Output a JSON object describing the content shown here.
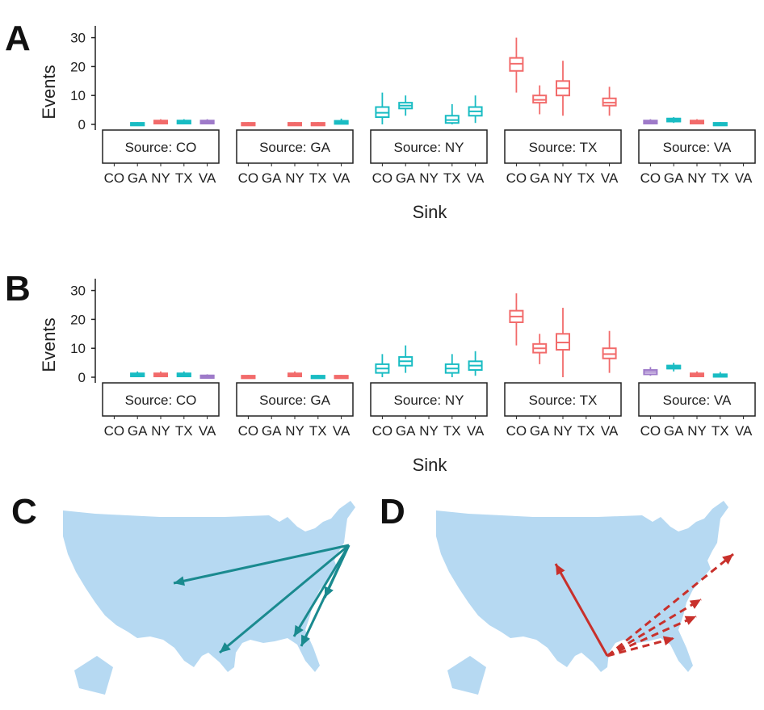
{
  "panels": {
    "A": {
      "letter": "A"
    },
    "B": {
      "letter": "B"
    },
    "C": {
      "letter": "C"
    },
    "D": {
      "letter": "D"
    }
  },
  "colors": {
    "CO": "#9e7ac9",
    "GA": "#00b7bf",
    "NY": "#f26b6b",
    "TX": "#00b7bf",
    "VA": "#9e7ac9",
    "red": "#f26b6b",
    "teal": "#19bcc3",
    "map": "#b6d9f2",
    "arrow_teal": "#1a8a8f",
    "arrow_red": "#c8302b"
  },
  "chart_data": [
    {
      "type": "box",
      "panel": "A",
      "ylabel": "Events",
      "xlabel": "Sink",
      "y_ticks": [
        "0",
        "10",
        "20",
        "30"
      ],
      "ylim": [
        -1,
        37
      ],
      "facet_prefix": "Source: ",
      "sinks": [
        "CO",
        "GA",
        "NY",
        "TX",
        "VA"
      ],
      "facets": [
        {
          "source": "CO",
          "boxes": [
            null,
            {
              "sink": "GA",
              "min": 0,
              "q1": 0,
              "median": 0.2,
              "q3": 0.5,
              "max": 0.8,
              "color": "teal"
            },
            {
              "sink": "NY",
              "min": 0,
              "q1": 0.3,
              "median": 0.8,
              "q3": 1.3,
              "max": 1.8,
              "color": "red"
            },
            {
              "sink": "TX",
              "min": 0,
              "q1": 0.3,
              "median": 0.8,
              "q3": 1.3,
              "max": 1.8,
              "color": "teal"
            },
            {
              "sink": "VA",
              "min": 0,
              "q1": 0.3,
              "median": 0.8,
              "q3": 1.3,
              "max": 1.8,
              "color": "purple"
            }
          ]
        },
        {
          "source": "GA",
          "boxes": [
            {
              "sink": "CO",
              "min": 0,
              "q1": 0,
              "median": 0.2,
              "q3": 0.5,
              "max": 0.8,
              "color": "red"
            },
            null,
            {
              "sink": "NY",
              "min": 0,
              "q1": 0,
              "median": 0.2,
              "q3": 0.5,
              "max": 0.8,
              "color": "red"
            },
            {
              "sink": "TX",
              "min": 0,
              "q1": 0,
              "median": 0.2,
              "q3": 0.5,
              "max": 0.8,
              "color": "red"
            },
            {
              "sink": "VA",
              "min": 0,
              "q1": 0.2,
              "median": 0.7,
              "q3": 1.2,
              "max": 2.0,
              "color": "teal"
            }
          ]
        },
        {
          "source": "NY",
          "boxes": [
            {
              "sink": "CO",
              "min": 0,
              "q1": 2.5,
              "median": 4,
              "q3": 6,
              "max": 11,
              "color": "teal"
            },
            {
              "sink": "GA",
              "min": 3,
              "q1": 5.5,
              "median": 6.5,
              "q3": 7.5,
              "max": 10,
              "color": "teal"
            },
            null,
            {
              "sink": "TX",
              "min": 0,
              "q1": 0.5,
              "median": 1.5,
              "q3": 3,
              "max": 7,
              "color": "teal"
            },
            {
              "sink": "VA",
              "min": 0.5,
              "q1": 3,
              "median": 4.5,
              "q3": 6,
              "max": 10,
              "color": "teal"
            }
          ]
        },
        {
          "source": "TX",
          "boxes": [
            {
              "sink": "CO",
              "min": 11,
              "q1": 18.5,
              "median": 21,
              "q3": 23,
              "max": 30,
              "color": "red"
            },
            {
              "sink": "GA",
              "min": 3.5,
              "q1": 7.5,
              "median": 8.5,
              "q3": 10,
              "max": 13.5,
              "color": "red"
            },
            {
              "sink": "NY",
              "min": 3,
              "q1": 10,
              "median": 12.5,
              "q3": 15,
              "max": 22,
              "color": "red"
            },
            null,
            {
              "sink": "VA",
              "min": 3,
              "q1": 6.5,
              "median": 7.5,
              "q3": 9,
              "max": 13,
              "color": "red"
            }
          ]
        },
        {
          "source": "VA",
          "boxes": [
            {
              "sink": "CO",
              "min": 0,
              "q1": 0.3,
              "median": 0.8,
              "q3": 1.3,
              "max": 1.8,
              "color": "purple"
            },
            {
              "sink": "GA",
              "min": 0.5,
              "q1": 1.0,
              "median": 1.5,
              "q3": 2.0,
              "max": 2.5,
              "color": "teal"
            },
            {
              "sink": "NY",
              "min": 0,
              "q1": 0.3,
              "median": 0.8,
              "q3": 1.3,
              "max": 1.8,
              "color": "red"
            },
            {
              "sink": "TX",
              "min": 0,
              "q1": 0,
              "median": 0.2,
              "q3": 0.5,
              "max": 0.8,
              "color": "teal"
            },
            null
          ]
        }
      ]
    },
    {
      "type": "box",
      "panel": "B",
      "ylabel": "Events",
      "xlabel": "Sink",
      "y_ticks": [
        "0",
        "10",
        "20",
        "30"
      ],
      "ylim": [
        -1,
        37
      ],
      "facet_prefix": "Source: ",
      "sinks": [
        "CO",
        "GA",
        "NY",
        "TX",
        "VA"
      ],
      "facets": [
        {
          "source": "CO",
          "boxes": [
            null,
            {
              "sink": "GA",
              "min": 0,
              "q1": 0.3,
              "median": 0.8,
              "q3": 1.3,
              "max": 2.0,
              "color": "teal"
            },
            {
              "sink": "NY",
              "min": 0,
              "q1": 0.3,
              "median": 0.8,
              "q3": 1.3,
              "max": 2.0,
              "color": "red"
            },
            {
              "sink": "TX",
              "min": 0,
              "q1": 0.3,
              "median": 0.8,
              "q3": 1.3,
              "max": 2.0,
              "color": "teal"
            },
            {
              "sink": "VA",
              "min": 0,
              "q1": 0,
              "median": 0.3,
              "q3": 0.6,
              "max": 1.0,
              "color": "purple"
            }
          ]
        },
        {
          "source": "GA",
          "boxes": [
            {
              "sink": "CO",
              "min": 0,
              "q1": 0,
              "median": 0.2,
              "q3": 0.5,
              "max": 0.8,
              "color": "red"
            },
            null,
            {
              "sink": "NY",
              "min": 0,
              "q1": 0.3,
              "median": 0.8,
              "q3": 1.3,
              "max": 2.0,
              "color": "red"
            },
            {
              "sink": "TX",
              "min": 0,
              "q1": 0,
              "median": 0.2,
              "q3": 0.5,
              "max": 0.8,
              "color": "teal"
            },
            {
              "sink": "VA",
              "min": 0,
              "q1": 0,
              "median": 0.2,
              "q3": 0.5,
              "max": 0.8,
              "color": "red"
            }
          ]
        },
        {
          "source": "NY",
          "boxes": [
            {
              "sink": "CO",
              "min": 0,
              "q1": 1.5,
              "median": 3,
              "q3": 4.5,
              "max": 8,
              "color": "teal"
            },
            {
              "sink": "GA",
              "min": 1.5,
              "q1": 4,
              "median": 5.5,
              "q3": 7,
              "max": 11,
              "color": "teal"
            },
            null,
            {
              "sink": "TX",
              "min": 0,
              "q1": 1.5,
              "median": 3,
              "q3": 4.5,
              "max": 8,
              "color": "teal"
            },
            {
              "sink": "VA",
              "min": 0.5,
              "q1": 2.5,
              "median": 4,
              "q3": 5.5,
              "max": 9,
              "color": "teal"
            }
          ]
        },
        {
          "source": "TX",
          "boxes": [
            {
              "sink": "CO",
              "min": 11,
              "q1": 19,
              "median": 21,
              "q3": 23,
              "max": 29,
              "color": "red"
            },
            {
              "sink": "GA",
              "min": 4.5,
              "q1": 8.5,
              "median": 10,
              "q3": 11.5,
              "max": 15,
              "color": "red"
            },
            {
              "sink": "NY",
              "min": 0,
              "q1": 9.5,
              "median": 12,
              "q3": 15,
              "max": 24,
              "color": "red"
            },
            null,
            {
              "sink": "VA",
              "min": 1.5,
              "q1": 6.5,
              "median": 8,
              "q3": 10,
              "max": 16,
              "color": "red"
            }
          ]
        },
        {
          "source": "VA",
          "boxes": [
            {
              "sink": "CO",
              "min": 0.5,
              "q1": 1.0,
              "median": 1.8,
              "q3": 2.5,
              "max": 3.5,
              "color": "purple"
            },
            {
              "sink": "GA",
              "min": 2,
              "q1": 3.0,
              "median": 3.5,
              "q3": 4.0,
              "max": 5,
              "color": "teal"
            },
            {
              "sink": "NY",
              "min": 0,
              "q1": 0.3,
              "median": 0.8,
              "q3": 1.3,
              "max": 2.0,
              "color": "red"
            },
            {
              "sink": "TX",
              "min": 0,
              "q1": 0.2,
              "median": 0.6,
              "q3": 1.0,
              "max": 1.8,
              "color": "teal"
            },
            null
          ]
        }
      ]
    },
    {
      "type": "map",
      "panel": "C",
      "arrows": [
        {
          "from": "NY",
          "to": "CO",
          "style": "solid"
        },
        {
          "from": "NY",
          "to": "TX",
          "style": "solid"
        },
        {
          "from": "NY",
          "to": "GA",
          "style": "solid"
        },
        {
          "from": "NY",
          "to": "GA",
          "style": "solid"
        },
        {
          "from": "NY",
          "to": "VA",
          "style": "solid"
        }
      ]
    },
    {
      "type": "map",
      "panel": "D",
      "arrows": [
        {
          "from": "TX",
          "to": "CO",
          "style": "solid"
        },
        {
          "from": "TX",
          "to": "NY",
          "style": "dashed"
        },
        {
          "from": "TX",
          "to": "VA",
          "style": "dashed"
        },
        {
          "from": "TX",
          "to": "VA",
          "style": "dashed"
        },
        {
          "from": "TX",
          "to": "GA",
          "style": "dashed"
        }
      ]
    }
  ]
}
